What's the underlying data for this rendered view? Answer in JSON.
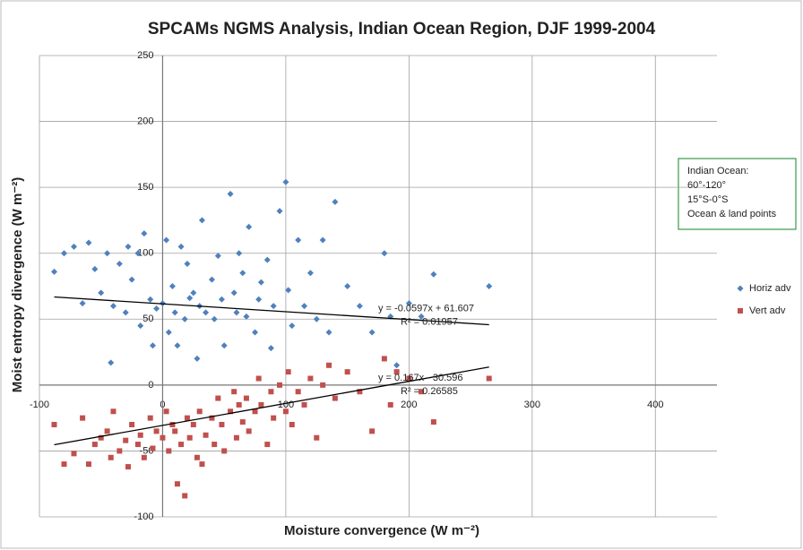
{
  "chart_data": {
    "type": "scatter",
    "title": "SPCAMs NGMS Analysis, Indian Ocean Region, DJF 1999-2004",
    "x_label": "Moisture convergence (W m⁻²)",
    "y_label": "Moist entropy divergence (W m⁻²)",
    "xlim": [
      -100,
      450
    ],
    "ylim": [
      -100,
      250
    ],
    "xticks": [
      -100,
      0,
      100,
      200,
      300,
      400
    ],
    "yticks": [
      -100,
      -50,
      0,
      50,
      100,
      150,
      200,
      250
    ],
    "grid": true,
    "legend": "right",
    "annotation": [
      "Indian Ocean:",
      "60°-120°",
      "15°S-0°S",
      "Ocean & land points"
    ],
    "series": [
      {
        "name": "Horiz adv",
        "color": "#4f81bd",
        "marker": "diamond",
        "x": [
          -88,
          -80,
          -72,
          -65,
          -60,
          -55,
          -50,
          -45,
          -42,
          -40,
          -35,
          -30,
          -28,
          -25,
          -20,
          -18,
          -15,
          -10,
          -8,
          -5,
          0,
          3,
          5,
          8,
          10,
          12,
          15,
          18,
          20,
          22,
          25,
          28,
          30,
          32,
          35,
          40,
          42,
          45,
          48,
          50,
          55,
          58,
          60,
          62,
          65,
          68,
          70,
          75,
          78,
          80,
          85,
          88,
          90,
          95,
          100,
          102,
          105,
          110,
          115,
          120,
          125,
          130,
          135,
          140,
          150,
          160,
          170,
          180,
          185,
          190,
          200,
          210,
          220,
          265
        ],
        "values": [
          86,
          100,
          105,
          62,
          108,
          88,
          70,
          100,
          17,
          60,
          92,
          55,
          105,
          80,
          100,
          45,
          115,
          65,
          30,
          58,
          62,
          110,
          40,
          75,
          55,
          30,
          105,
          50,
          92,
          66,
          70,
          20,
          60,
          125,
          55,
          80,
          50,
          98,
          65,
          30,
          145,
          70,
          55,
          100,
          85,
          52,
          120,
          40,
          65,
          78,
          95,
          28,
          60,
          132,
          154,
          72,
          45,
          110,
          60,
          85,
          50,
          110,
          40,
          139,
          75,
          60,
          40,
          100,
          52,
          15,
          62,
          52,
          84,
          75
        ],
        "trendline": {
          "slope": -0.0597,
          "intercept": 61.607,
          "label": "y = -0.0597x + 61.607",
          "r2_label": "R² = 0.01957"
        }
      },
      {
        "name": "Vert adv",
        "color": "#c0504d",
        "marker": "square",
        "x": [
          -88,
          -80,
          -72,
          -65,
          -60,
          -55,
          -50,
          -45,
          -42,
          -40,
          -35,
          -30,
          -28,
          -25,
          -20,
          -18,
          -15,
          -10,
          -8,
          -5,
          0,
          3,
          5,
          8,
          10,
          12,
          15,
          18,
          20,
          22,
          25,
          28,
          30,
          32,
          35,
          40,
          42,
          45,
          48,
          50,
          55,
          58,
          60,
          62,
          65,
          68,
          70,
          75,
          78,
          80,
          85,
          88,
          90,
          95,
          100,
          102,
          105,
          110,
          115,
          120,
          125,
          130,
          135,
          140,
          150,
          160,
          170,
          180,
          185,
          190,
          200,
          210,
          220,
          265
        ],
        "values": [
          -30,
          -60,
          -52,
          -25,
          -60,
          -45,
          -40,
          -35,
          -55,
          -20,
          -50,
          -42,
          -62,
          -30,
          -45,
          -38,
          -55,
          -25,
          -48,
          -35,
          -40,
          -20,
          -50,
          -30,
          -35,
          -75,
          -45,
          -84,
          -25,
          -40,
          -30,
          -55,
          -20,
          -60,
          -38,
          -25,
          -45,
          -10,
          -30,
          -50,
          -20,
          -5,
          -40,
          -15,
          -28,
          -10,
          -35,
          -20,
          5,
          -15,
          -45,
          -5,
          -25,
          0,
          -20,
          10,
          -30,
          -5,
          -15,
          5,
          -40,
          0,
          15,
          -10,
          10,
          -5,
          -35,
          20,
          -15,
          10,
          5,
          -5,
          -28,
          5
        ],
        "trendline": {
          "slope": 0.167,
          "intercept": -30.596,
          "label": "y = 0.167x - 30.596",
          "r2_label": "R² = 0.26585"
        }
      }
    ]
  }
}
